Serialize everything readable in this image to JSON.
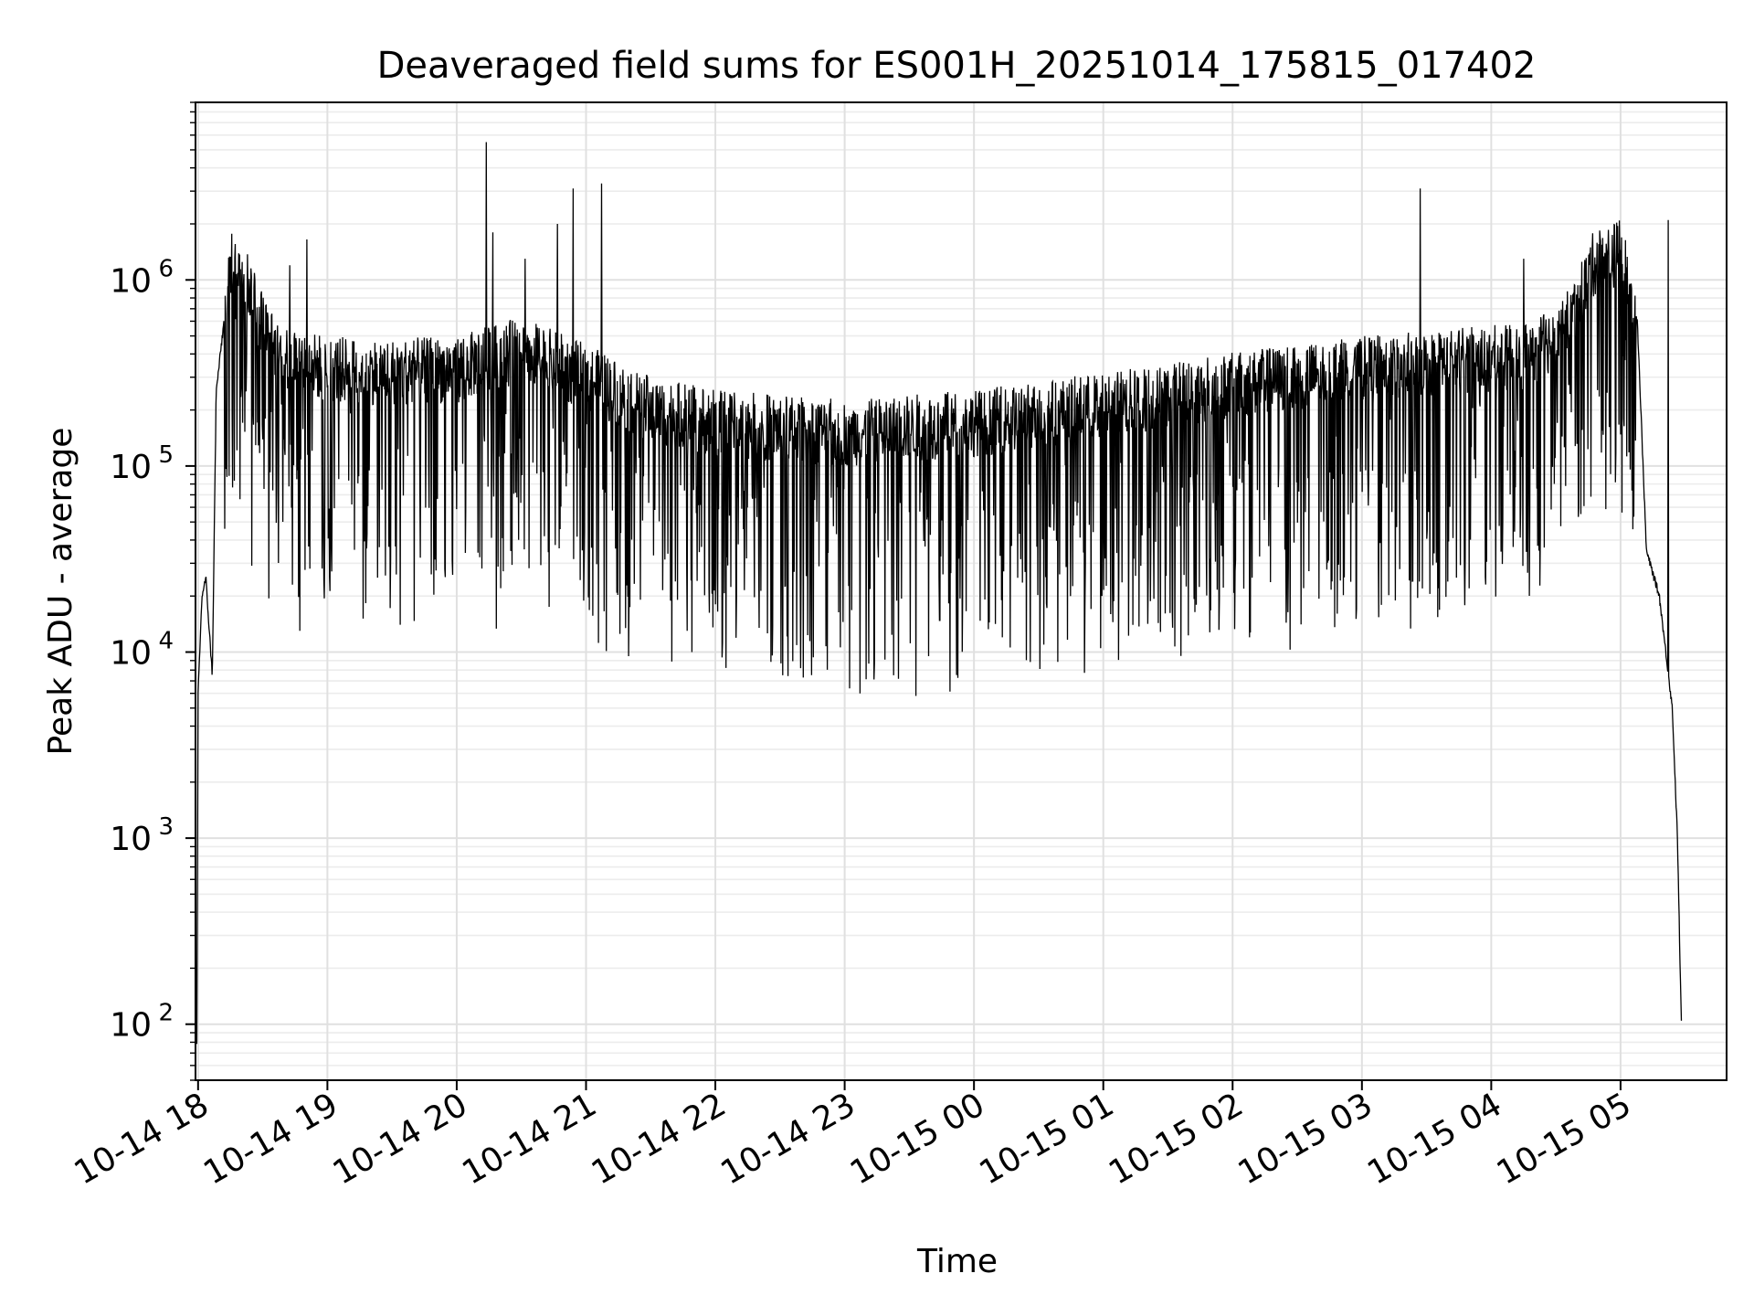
{
  "chart_data": {
    "type": "line",
    "title": "Deaveraged field sums for ES001H_20251014_175815_017402",
    "xlabel": "Time",
    "ylabel": "Peak ADU - average",
    "yscale": "log",
    "ylim": [
      50,
      9000000
    ],
    "xlim_hours": [
      -0.02,
      11.82
    ],
    "x_ticks": [
      {
        "label": "10-14 18",
        "h": 0
      },
      {
        "label": "10-14 19",
        "h": 1
      },
      {
        "label": "10-14 20",
        "h": 2
      },
      {
        "label": "10-14 21",
        "h": 3
      },
      {
        "label": "10-14 22",
        "h": 4
      },
      {
        "label": "10-14 23",
        "h": 5
      },
      {
        "label": "10-15 00",
        "h": 6
      },
      {
        "label": "10-15 01",
        "h": 7
      },
      {
        "label": "10-15 02",
        "h": 8
      },
      {
        "label": "10-15 03",
        "h": 9
      },
      {
        "label": "10-15 04",
        "h": 10
      },
      {
        "label": "10-15 05",
        "h": 11
      }
    ],
    "y_ticks": [
      {
        "base": "10",
        "exp": "2",
        "value": 100
      },
      {
        "base": "10",
        "exp": "3",
        "value": 1000
      },
      {
        "base": "10",
        "exp": "4",
        "value": 10000
      },
      {
        "base": "10",
        "exp": "5",
        "value": 100000
      },
      {
        "base": "10",
        "exp": "6",
        "value": 1000000
      }
    ],
    "grid": "both (major and minor)",
    "series": [
      {
        "name": "Peak ADU - average",
        "color": "#000000",
        "noise_decades": 0.18,
        "dip_probability": 0.22,
        "dip_depth_decades": [
          0.3,
          1.3
        ],
        "envelope": [
          {
            "h": -0.01,
            "v": 80
          },
          {
            "h": 0.0,
            "v": 6000
          },
          {
            "h": 0.03,
            "v": 20000
          },
          {
            "h": 0.06,
            "v": 25000
          },
          {
            "h": 0.09,
            "v": 12000
          },
          {
            "h": 0.11,
            "v": 7500
          },
          {
            "h": 0.14,
            "v": 250000
          },
          {
            "h": 0.22,
            "v": 800000
          },
          {
            "h": 0.27,
            "v": 1300000
          },
          {
            "h": 0.35,
            "v": 1150000
          },
          {
            "h": 0.45,
            "v": 700000
          },
          {
            "h": 0.6,
            "v": 400000
          },
          {
            "h": 1.0,
            "v": 330000
          },
          {
            "h": 1.5,
            "v": 320000
          },
          {
            "h": 2.0,
            "v": 330000
          },
          {
            "h": 2.5,
            "v": 420000
          },
          {
            "h": 3.0,
            "v": 300000
          },
          {
            "h": 3.5,
            "v": 200000
          },
          {
            "h": 4.0,
            "v": 170000
          },
          {
            "h": 5.0,
            "v": 150000
          },
          {
            "h": 6.0,
            "v": 170000
          },
          {
            "h": 7.0,
            "v": 210000
          },
          {
            "h": 8.0,
            "v": 270000
          },
          {
            "h": 9.0,
            "v": 330000
          },
          {
            "h": 10.0,
            "v": 380000
          },
          {
            "h": 10.3,
            "v": 380000
          },
          {
            "h": 10.6,
            "v": 600000
          },
          {
            "h": 10.8,
            "v": 1250000
          },
          {
            "h": 11.0,
            "v": 1400000
          },
          {
            "h": 11.13,
            "v": 600000
          },
          {
            "h": 11.2,
            "v": 35000
          },
          {
            "h": 11.3,
            "v": 20000
          },
          {
            "h": 11.4,
            "v": 5000
          },
          {
            "h": 11.44,
            "v": 1000
          },
          {
            "h": 11.47,
            "v": 100
          }
        ],
        "spikes": [
          {
            "h": 0.84,
            "v": 1650000
          },
          {
            "h": 2.23,
            "v": 5500000
          },
          {
            "h": 2.28,
            "v": 1800000
          },
          {
            "h": 2.53,
            "v": 1300000
          },
          {
            "h": 2.78,
            "v": 2000000
          },
          {
            "h": 2.9,
            "v": 3100000
          },
          {
            "h": 3.12,
            "v": 3300000
          },
          {
            "h": 9.45,
            "v": 3100000
          },
          {
            "h": 11.37,
            "v": 2100000
          },
          {
            "h": 10.25,
            "v": 1300000
          },
          {
            "h": 0.71,
            "v": 1200000
          }
        ],
        "deep_dips": [
          {
            "h": 0.73,
            "v": 23000
          },
          {
            "h": 1.97,
            "v": 26000
          },
          {
            "h": 3.33,
            "v": 9500
          },
          {
            "h": 3.82,
            "v": 10000
          },
          {
            "h": 4.52,
            "v": 7500
          },
          {
            "h": 5.12,
            "v": 6000
          },
          {
            "h": 5.38,
            "v": 7500
          },
          {
            "h": 5.65,
            "v": 9500
          },
          {
            "h": 6.22,
            "v": 12000
          },
          {
            "h": 6.98,
            "v": 10500
          },
          {
            "h": 7.23,
            "v": 14000
          },
          {
            "h": 8.13,
            "v": 12000
          },
          {
            "h": 9.83,
            "v": 22000
          }
        ]
      }
    ]
  }
}
